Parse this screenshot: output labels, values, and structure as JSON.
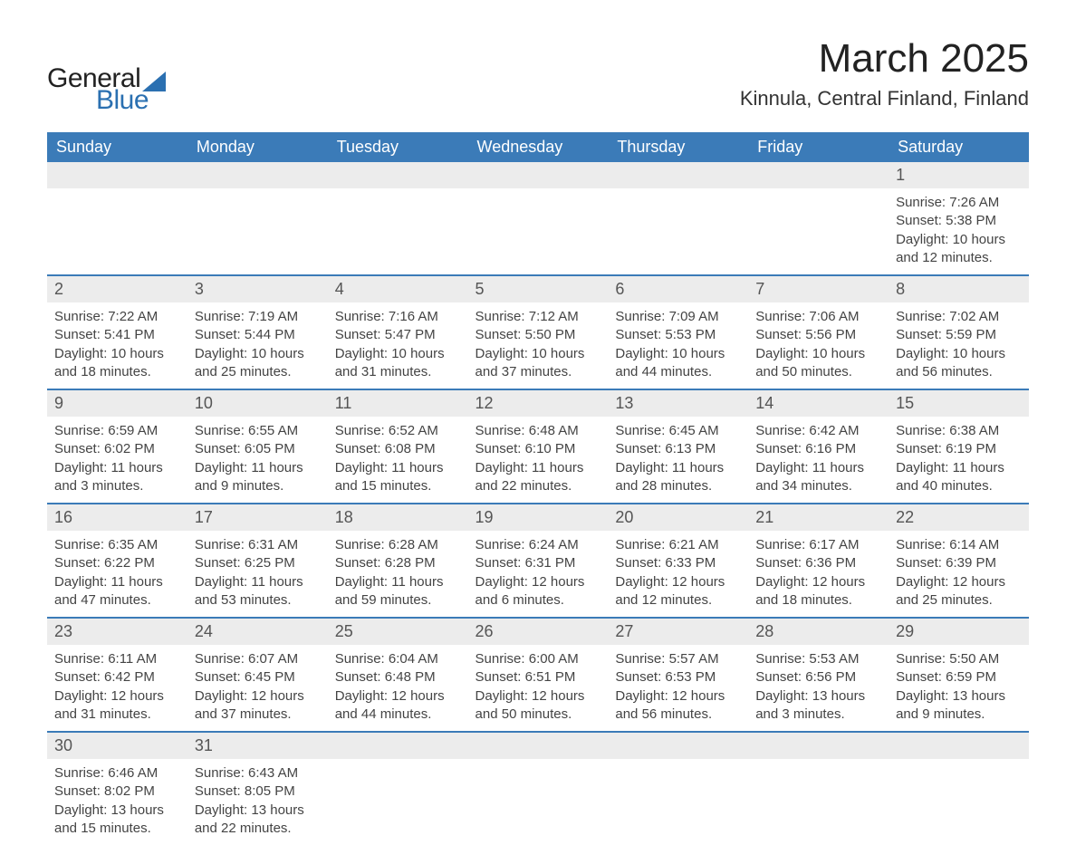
{
  "brand": {
    "word1": "General",
    "word2": "Blue",
    "accent_color": "#2b70b1"
  },
  "title": "March 2025",
  "location": "Kinnula, Central Finland, Finland",
  "colors": {
    "header_bg": "#3b7bb8",
    "header_text": "#ffffff",
    "daynum_bg": "#ececec",
    "row_divider": "#3b7bb8",
    "body_text": "#444444",
    "page_bg": "#ffffff"
  },
  "day_labels": [
    "Sunday",
    "Monday",
    "Tuesday",
    "Wednesday",
    "Thursday",
    "Friday",
    "Saturday"
  ],
  "weeks": [
    [
      null,
      null,
      null,
      null,
      null,
      null,
      {
        "n": "1",
        "sunrise": "7:26 AM",
        "sunset": "5:38 PM",
        "daylight": "10 hours and 12 minutes."
      }
    ],
    [
      {
        "n": "2",
        "sunrise": "7:22 AM",
        "sunset": "5:41 PM",
        "daylight": "10 hours and 18 minutes."
      },
      {
        "n": "3",
        "sunrise": "7:19 AM",
        "sunset": "5:44 PM",
        "daylight": "10 hours and 25 minutes."
      },
      {
        "n": "4",
        "sunrise": "7:16 AM",
        "sunset": "5:47 PM",
        "daylight": "10 hours and 31 minutes."
      },
      {
        "n": "5",
        "sunrise": "7:12 AM",
        "sunset": "5:50 PM",
        "daylight": "10 hours and 37 minutes."
      },
      {
        "n": "6",
        "sunrise": "7:09 AM",
        "sunset": "5:53 PM",
        "daylight": "10 hours and 44 minutes."
      },
      {
        "n": "7",
        "sunrise": "7:06 AM",
        "sunset": "5:56 PM",
        "daylight": "10 hours and 50 minutes."
      },
      {
        "n": "8",
        "sunrise": "7:02 AM",
        "sunset": "5:59 PM",
        "daylight": "10 hours and 56 minutes."
      }
    ],
    [
      {
        "n": "9",
        "sunrise": "6:59 AM",
        "sunset": "6:02 PM",
        "daylight": "11 hours and 3 minutes."
      },
      {
        "n": "10",
        "sunrise": "6:55 AM",
        "sunset": "6:05 PM",
        "daylight": "11 hours and 9 minutes."
      },
      {
        "n": "11",
        "sunrise": "6:52 AM",
        "sunset": "6:08 PM",
        "daylight": "11 hours and 15 minutes."
      },
      {
        "n": "12",
        "sunrise": "6:48 AM",
        "sunset": "6:10 PM",
        "daylight": "11 hours and 22 minutes."
      },
      {
        "n": "13",
        "sunrise": "6:45 AM",
        "sunset": "6:13 PM",
        "daylight": "11 hours and 28 minutes."
      },
      {
        "n": "14",
        "sunrise": "6:42 AM",
        "sunset": "6:16 PM",
        "daylight": "11 hours and 34 minutes."
      },
      {
        "n": "15",
        "sunrise": "6:38 AM",
        "sunset": "6:19 PM",
        "daylight": "11 hours and 40 minutes."
      }
    ],
    [
      {
        "n": "16",
        "sunrise": "6:35 AM",
        "sunset": "6:22 PM",
        "daylight": "11 hours and 47 minutes."
      },
      {
        "n": "17",
        "sunrise": "6:31 AM",
        "sunset": "6:25 PM",
        "daylight": "11 hours and 53 minutes."
      },
      {
        "n": "18",
        "sunrise": "6:28 AM",
        "sunset": "6:28 PM",
        "daylight": "11 hours and 59 minutes."
      },
      {
        "n": "19",
        "sunrise": "6:24 AM",
        "sunset": "6:31 PM",
        "daylight": "12 hours and 6 minutes."
      },
      {
        "n": "20",
        "sunrise": "6:21 AM",
        "sunset": "6:33 PM",
        "daylight": "12 hours and 12 minutes."
      },
      {
        "n": "21",
        "sunrise": "6:17 AM",
        "sunset": "6:36 PM",
        "daylight": "12 hours and 18 minutes."
      },
      {
        "n": "22",
        "sunrise": "6:14 AM",
        "sunset": "6:39 PM",
        "daylight": "12 hours and 25 minutes."
      }
    ],
    [
      {
        "n": "23",
        "sunrise": "6:11 AM",
        "sunset": "6:42 PM",
        "daylight": "12 hours and 31 minutes."
      },
      {
        "n": "24",
        "sunrise": "6:07 AM",
        "sunset": "6:45 PM",
        "daylight": "12 hours and 37 minutes."
      },
      {
        "n": "25",
        "sunrise": "6:04 AM",
        "sunset": "6:48 PM",
        "daylight": "12 hours and 44 minutes."
      },
      {
        "n": "26",
        "sunrise": "6:00 AM",
        "sunset": "6:51 PM",
        "daylight": "12 hours and 50 minutes."
      },
      {
        "n": "27",
        "sunrise": "5:57 AM",
        "sunset": "6:53 PM",
        "daylight": "12 hours and 56 minutes."
      },
      {
        "n": "28",
        "sunrise": "5:53 AM",
        "sunset": "6:56 PM",
        "daylight": "13 hours and 3 minutes."
      },
      {
        "n": "29",
        "sunrise": "5:50 AM",
        "sunset": "6:59 PM",
        "daylight": "13 hours and 9 minutes."
      }
    ],
    [
      {
        "n": "30",
        "sunrise": "6:46 AM",
        "sunset": "8:02 PM",
        "daylight": "13 hours and 15 minutes."
      },
      {
        "n": "31",
        "sunrise": "6:43 AM",
        "sunset": "8:05 PM",
        "daylight": "13 hours and 22 minutes."
      },
      null,
      null,
      null,
      null,
      null
    ]
  ],
  "field_labels": {
    "sunrise": "Sunrise: ",
    "sunset": "Sunset: ",
    "daylight": "Daylight: "
  }
}
